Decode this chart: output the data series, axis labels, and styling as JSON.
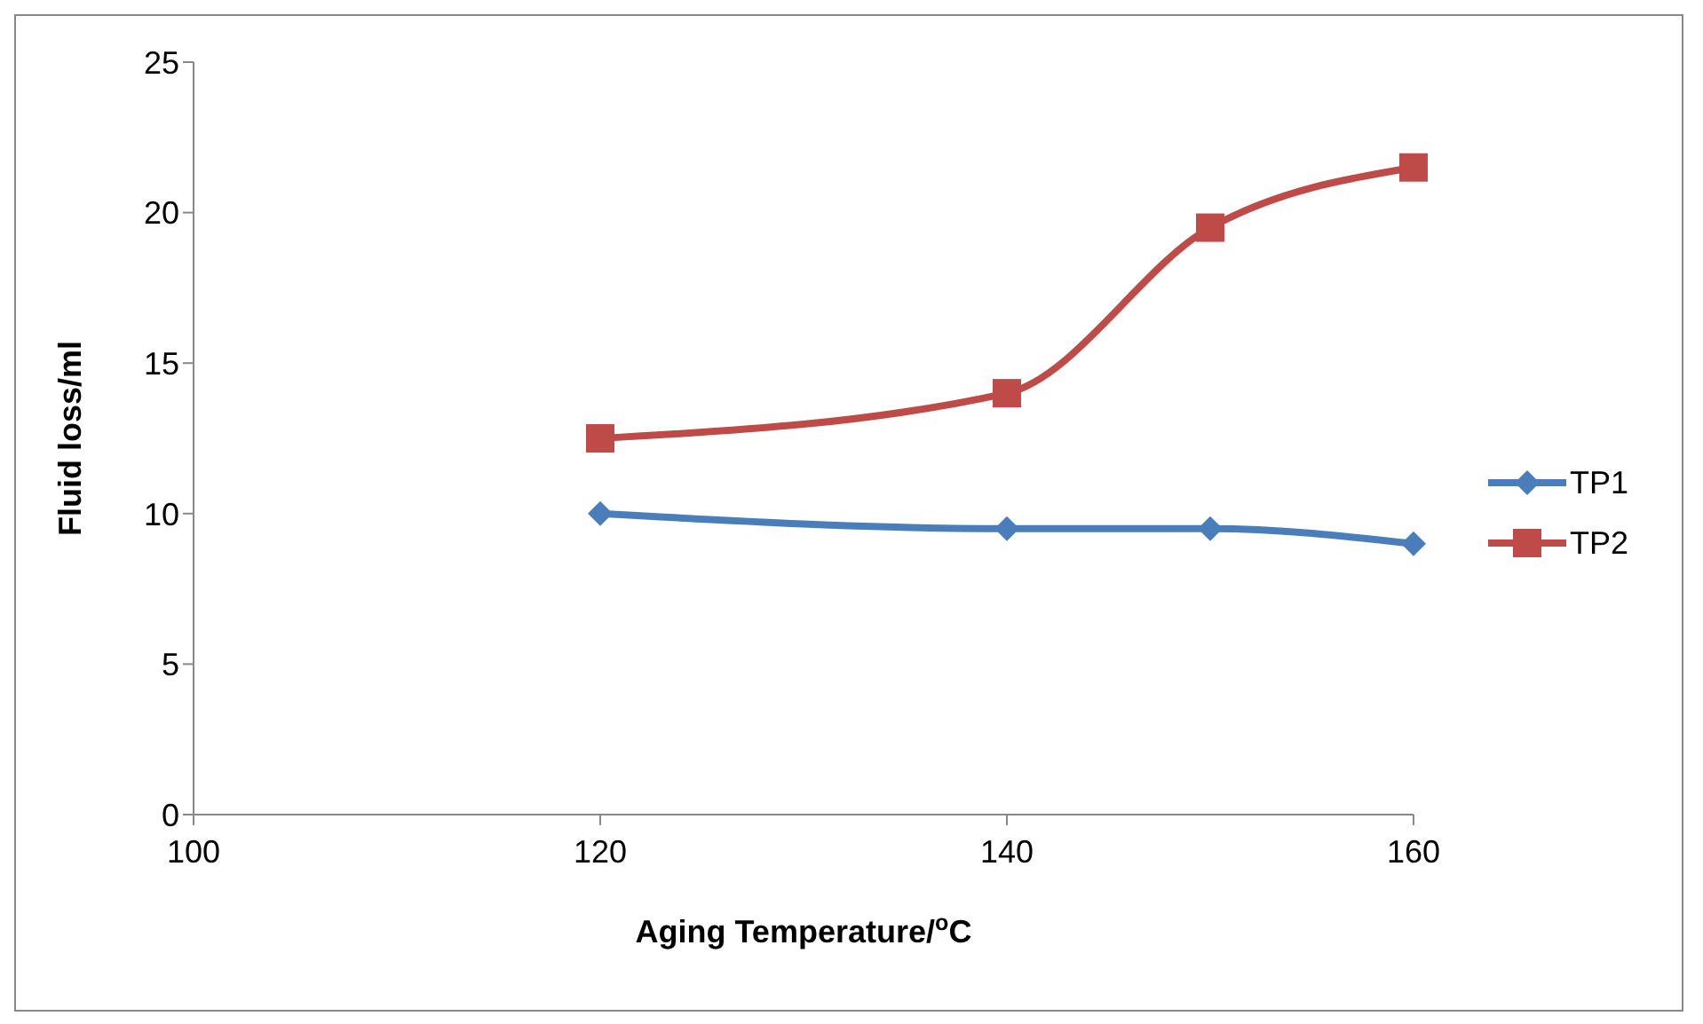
{
  "chart_data": {
    "type": "line",
    "xlabel": "Aging  Temperature/$^{o}$C",
    "ylabel": "Fluid loss/ml",
    "x": [
      120,
      140,
      150,
      160
    ],
    "series": [
      {
        "name": "TP1",
        "color": "#4a7ebb",
        "values": [
          10,
          9.5,
          9.5,
          9
        ],
        "marker": "diamond"
      },
      {
        "name": "TP2",
        "color": "#be4b48",
        "values": [
          12.5,
          14,
          19.5,
          21.5
        ],
        "marker": "square"
      }
    ],
    "xlim": [
      100,
      160
    ],
    "xticks": [
      100,
      120,
      140,
      160
    ],
    "ylim": [
      0,
      25
    ],
    "yticks": [
      0,
      5,
      10,
      15,
      20,
      25
    ],
    "grid": false,
    "legend": "right",
    "line_style": "solid"
  }
}
